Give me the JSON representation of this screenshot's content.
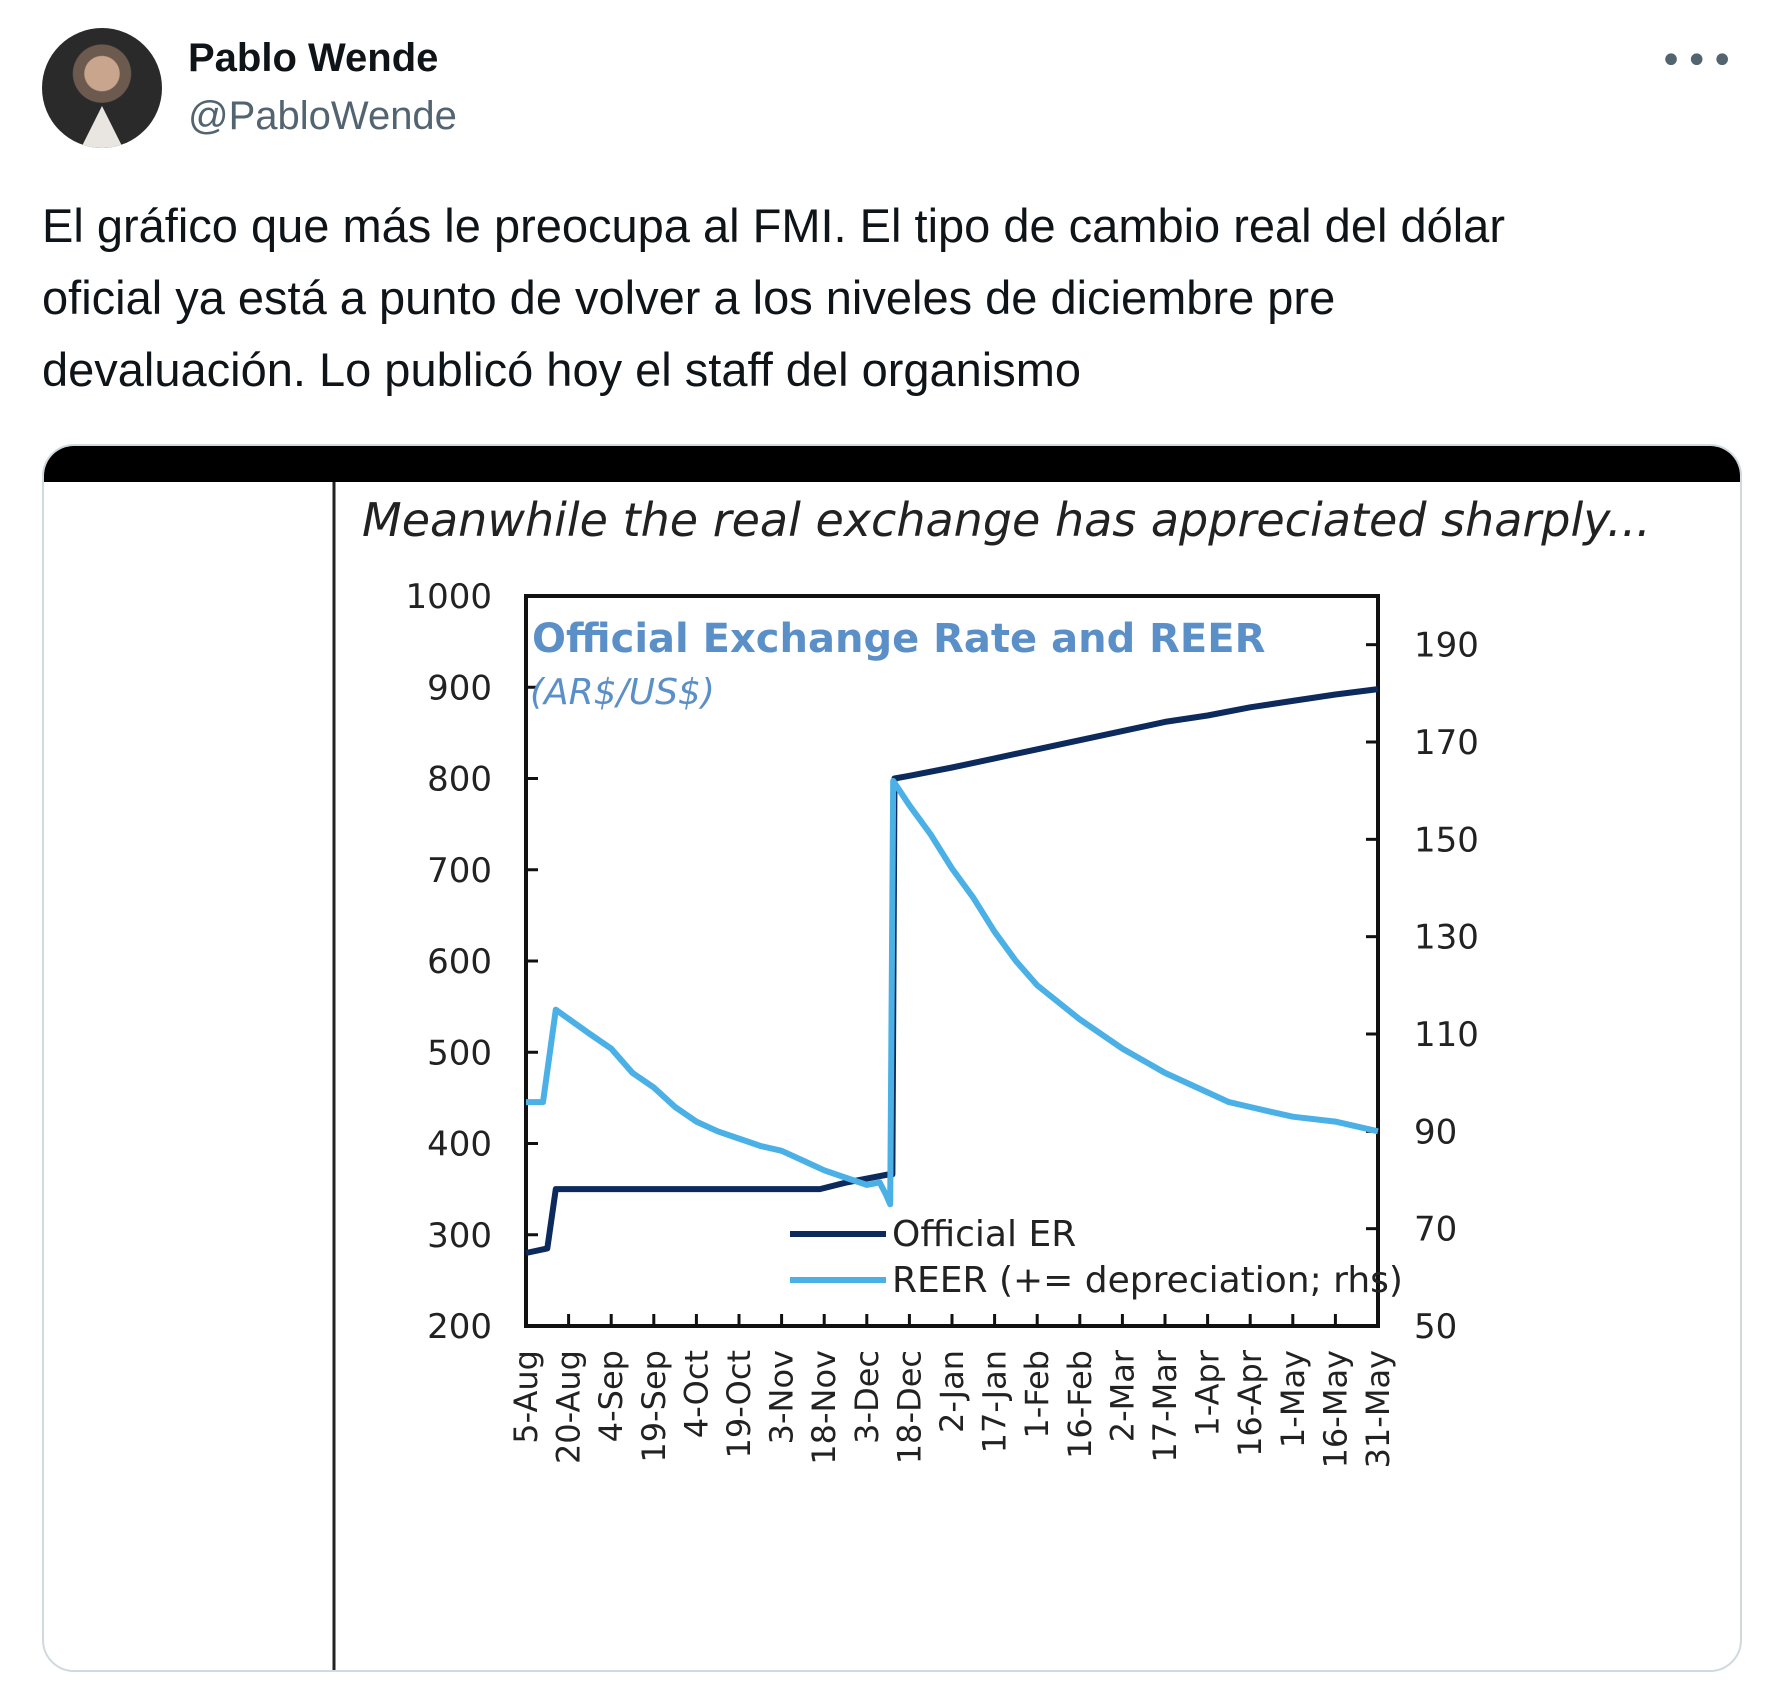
{
  "tweet": {
    "author_name": "Pablo Wende",
    "author_handle": "@PabloWende",
    "more_icon": "more-horizontal-icon",
    "text_lines": [
      "El gráfico que más le preocupa al FMI. El tipo de cambio real del dólar",
      "oficial ya está a punto de volver a los niveles de diciembre pre",
      "devaluación. Lo publicó hoy el staff del organismo"
    ]
  },
  "media": {
    "heading": "Meanwhile the real exchange has appreciated sharply...",
    "chart_data": {
      "type": "line",
      "title": "Official Exchange Rate and REER",
      "subtitle": "(AR$/US$)",
      "x": [
        "5-Aug",
        "20-Aug",
        "4-Sep",
        "19-Sep",
        "4-Oct",
        "19-Oct",
        "3-Nov",
        "18-Nov",
        "3-Dec",
        "18-Dec",
        "2-Jan",
        "17-Jan",
        "1-Feb",
        "16-Feb",
        "2-Mar",
        "17-Mar",
        "1-Apr",
        "16-Apr",
        "1-May",
        "16-May",
        "31-May"
      ],
      "ylim_left": [
        200,
        1000
      ],
      "yticks_left": [
        200,
        300,
        400,
        500,
        600,
        700,
        800,
        900,
        1000
      ],
      "ylim_right": [
        50,
        200
      ],
      "yticks_right": [
        50,
        70,
        90,
        110,
        130,
        150,
        170,
        190
      ],
      "legend": "bottom-center",
      "colors": {
        "official": "#0d2a5c",
        "reer": "#4ab0e6",
        "title": "#5b8fc8"
      },
      "series": [
        {
          "name": "Official ER",
          "axis": "left",
          "points": [
            [
              0,
              280
            ],
            [
              0.5,
              285
            ],
            [
              0.7,
              350
            ],
            [
              4,
              350
            ],
            [
              6.9,
              350
            ],
            [
              7.5,
              357
            ],
            [
              8.5,
              366
            ],
            [
              8.6,
              366
            ],
            [
              8.65,
              800
            ],
            [
              9,
              803
            ],
            [
              10,
              812
            ],
            [
              11,
              822
            ],
            [
              12,
              832
            ],
            [
              13,
              842
            ],
            [
              14,
              852
            ],
            [
              15,
              862
            ],
            [
              16,
              869
            ],
            [
              17,
              878
            ],
            [
              18,
              885
            ],
            [
              19,
              892
            ],
            [
              20,
              898
            ]
          ]
        },
        {
          "name": "REER (+= depreciation; rhs)",
          "axis": "right",
          "points": [
            [
              0,
              96
            ],
            [
              0.4,
              96
            ],
            [
              0.7,
              115
            ],
            [
              1.5,
              110
            ],
            [
              2,
              107
            ],
            [
              2.5,
              102
            ],
            [
              3,
              99
            ],
            [
              3.5,
              95
            ],
            [
              4,
              92
            ],
            [
              4.5,
              90
            ],
            [
              5,
              88.5
            ],
            [
              5.5,
              87
            ],
            [
              6,
              86
            ],
            [
              6.5,
              84
            ],
            [
              7,
              82
            ],
            [
              7.5,
              80.5
            ],
            [
              8,
              79
            ],
            [
              8.3,
              79.5
            ],
            [
              8.45,
              77
            ],
            [
              8.55,
              75
            ],
            [
              8.62,
              162
            ],
            [
              9,
              157
            ],
            [
              9.5,
              151
            ],
            [
              10,
              144
            ],
            [
              10.5,
              138
            ],
            [
              11,
              131
            ],
            [
              11.5,
              125
            ],
            [
              12,
              120
            ],
            [
              13,
              113
            ],
            [
              14,
              107
            ],
            [
              15,
              102
            ],
            [
              16,
              98
            ],
            [
              16.5,
              96
            ],
            [
              17,
              95
            ],
            [
              17.5,
              94
            ],
            [
              18,
              93
            ],
            [
              19,
              92
            ],
            [
              20,
              90
            ]
          ]
        }
      ]
    }
  }
}
